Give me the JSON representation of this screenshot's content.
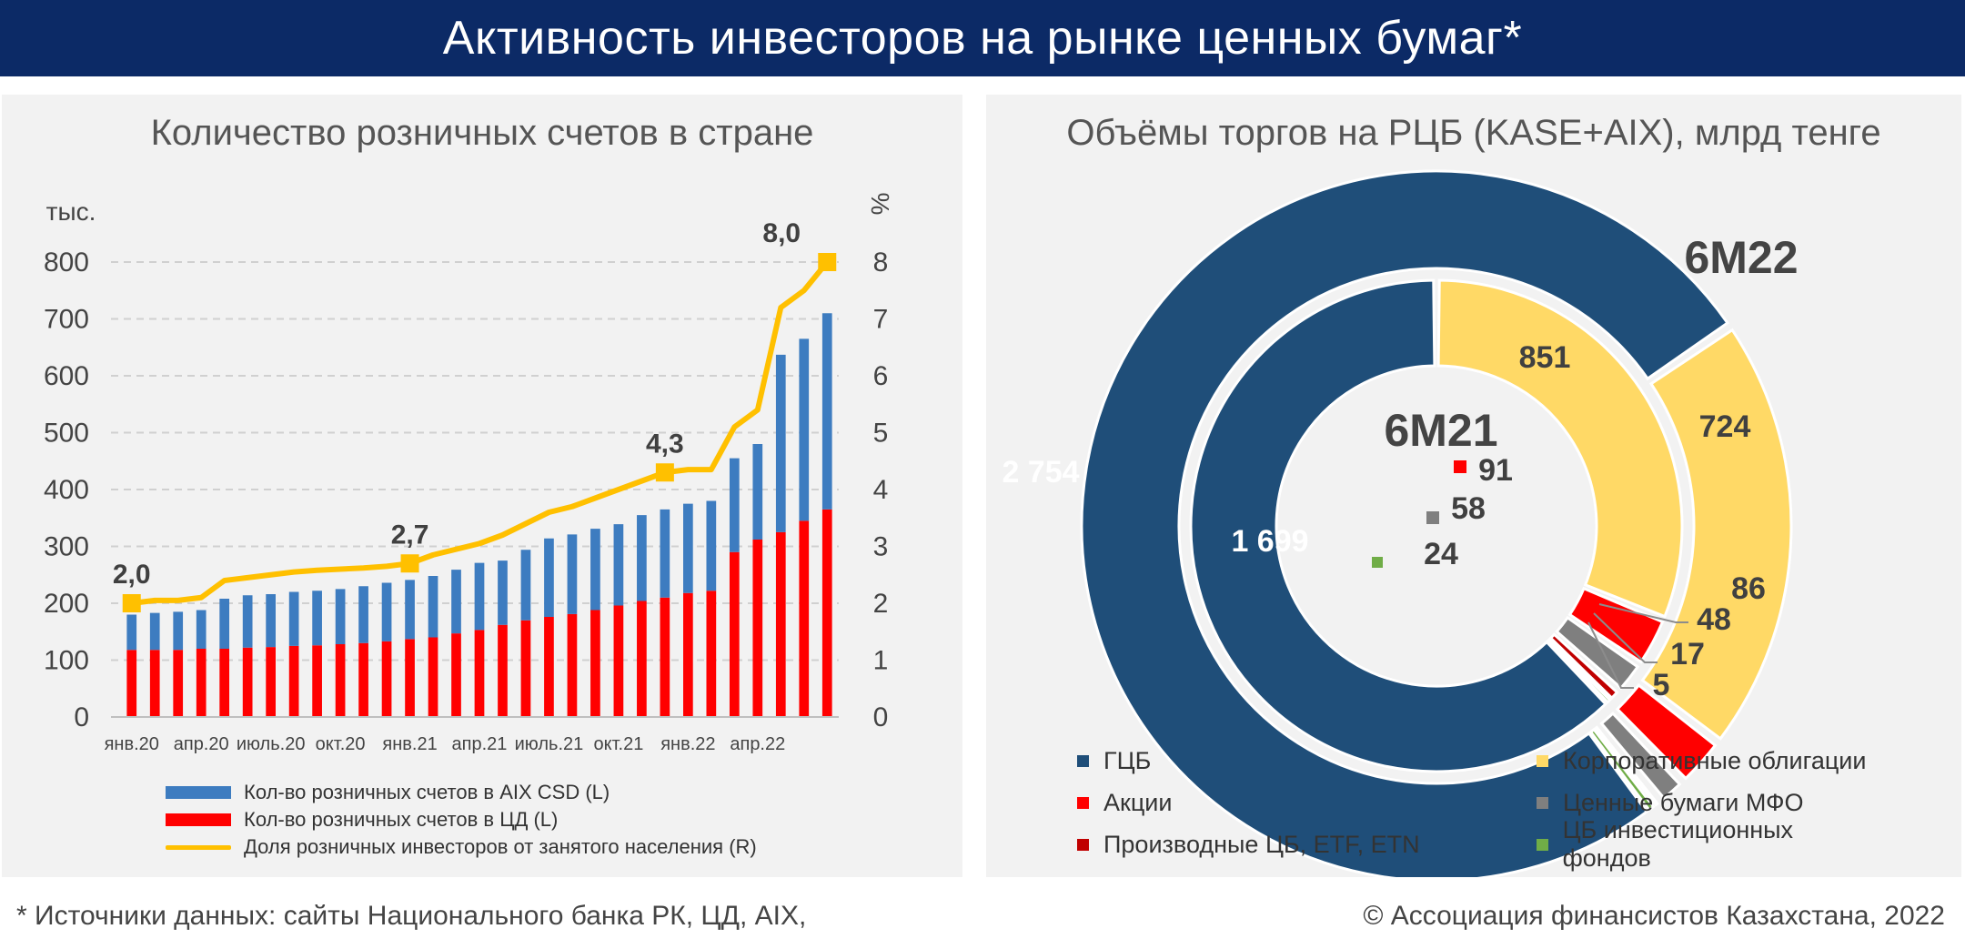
{
  "header": {
    "title": "Активность инвесторов на рынке ценных бумаг*"
  },
  "colors": {
    "navy": "#0c2a66",
    "aix_blue": "#3d7cc0",
    "cd_red": "#ff0000",
    "share_yellow": "#ffc000",
    "gcb_navy": "#1f4e79",
    "corp_yellow": "#ffd966",
    "stocks_red": "#ff0000",
    "mfo_gray": "#7f7f7f",
    "deriv_darkred": "#c00000",
    "funds_green": "#70ad47",
    "other_orange": "#c55a11"
  },
  "left_panel": {
    "title": "Количество розничных счетов в стране",
    "y_left_unit": "тыс.",
    "y_right_unit": "%",
    "legend": [
      {
        "label": "Кол-во розничных счетов в AIX CSD (L)",
        "color": "#3d7cc0",
        "kind": "bar"
      },
      {
        "label": "Кол-во розничных счетов в ЦД (L)",
        "color": "#ff0000",
        "kind": "bar"
      },
      {
        "label": "Доля розничных инвесторов от занятого населения (R)",
        "color": "#ffc000",
        "kind": "line"
      }
    ]
  },
  "right_panel": {
    "title": "Объёмы торгов на РЦБ (KASE+AIX), млрд тенге",
    "outer_label": "6М22",
    "inner_label": "6М21",
    "legend": [
      {
        "label": "ГЦБ",
        "color": "#1f4e79"
      },
      {
        "label": "Корпоративные облигации",
        "color": "#ffd966"
      },
      {
        "label": "Акции",
        "color": "#ff0000"
      },
      {
        "label": "Ценные бумаги МФО",
        "color": "#7f7f7f"
      },
      {
        "label": "Производные ЦБ, ETF, ETN",
        "color": "#c00000"
      },
      {
        "label": "ЦБ инвестиционных фондов",
        "color": "#70ad47"
      }
    ]
  },
  "chart_data": [
    {
      "type": "bar",
      "title": "Количество розничных счетов в стране",
      "ylabel": "тыс.",
      "y2label": "%",
      "stacked": true,
      "ylim": [
        0,
        800
      ],
      "y2lim": [
        0,
        8
      ],
      "y_ticks": [
        0,
        100,
        200,
        300,
        400,
        500,
        600,
        700,
        800
      ],
      "y2_ticks": [
        0,
        1,
        2,
        3,
        4,
        5,
        6,
        7,
        8
      ],
      "x_tick_labels": [
        {
          "index": 0,
          "label": "янв.20"
        },
        {
          "index": 3,
          "label": "апр.20"
        },
        {
          "index": 6,
          "label": "июль.20"
        },
        {
          "index": 9,
          "label": "окт.20"
        },
        {
          "index": 12,
          "label": "янв.21"
        },
        {
          "index": 15,
          "label": "апр.21"
        },
        {
          "index": 18,
          "label": "июль.21"
        },
        {
          "index": 21,
          "label": "окт.21"
        },
        {
          "index": 24,
          "label": "янв.22"
        },
        {
          "index": 27,
          "label": "апр.22"
        }
      ],
      "series": [
        {
          "name": "Кол-во розничных счетов в ЦД (L)",
          "axis": "left",
          "values": [
            118,
            118,
            118,
            120,
            120,
            122,
            123,
            125,
            126,
            128,
            130,
            133,
            137,
            140,
            147,
            153,
            162,
            170,
            176,
            181,
            188,
            196,
            204,
            210,
            218,
            222,
            290,
            312,
            325,
            345,
            365
          ]
        },
        {
          "name": "Кол-во розничных счетов в AIX CSD (L)",
          "axis": "left",
          "values": [
            62,
            65,
            67,
            68,
            88,
            92,
            93,
            95,
            96,
            97,
            100,
            103,
            104,
            108,
            112,
            118,
            113,
            124,
            138,
            140,
            143,
            143,
            151,
            155,
            157,
            158,
            165,
            168,
            312,
            320,
            345
          ]
        },
        {
          "name": "Доля розничных инвесторов от занятого населения (R)",
          "axis": "right",
          "type": "line",
          "values": [
            2.0,
            2.05,
            2.05,
            2.1,
            2.4,
            2.45,
            2.5,
            2.55,
            2.58,
            2.6,
            2.62,
            2.65,
            2.7,
            2.85,
            2.95,
            3.05,
            3.2,
            3.4,
            3.6,
            3.7,
            3.85,
            4.0,
            4.15,
            4.3,
            4.35,
            4.35,
            5.1,
            5.4,
            7.2,
            7.5,
            8.0
          ]
        }
      ],
      "data_labels": [
        {
          "index": 0,
          "value": "2,0"
        },
        {
          "index": 12,
          "value": "2,7"
        },
        {
          "index": 23,
          "value": "4,3"
        },
        {
          "index": 30,
          "value": "8,0"
        }
      ]
    },
    {
      "type": "pie",
      "subtype": "doughnut",
      "title": "Объёмы торгов на РЦБ (KASE+AIX), млрд тенге",
      "rings": [
        {
          "name": "6М22",
          "position": "outer",
          "slices": [
            {
              "category": "ГЦБ",
              "value": 2754,
              "label": "2 754"
            },
            {
              "category": "Корпоративные облигации",
              "value": 724,
              "label": "724"
            },
            {
              "category": "Акции",
              "value": 86,
              "label": "86"
            },
            {
              "category": "Ценные бумаги МФО",
              "value": 48,
              "label": "48"
            },
            {
              "category": "Производные ЦБ, ETF, ETN",
              "value": 17,
              "label": "17"
            },
            {
              "category": "ЦБ инвестиционных фондов",
              "value": 5,
              "label": "5"
            }
          ]
        },
        {
          "name": "6М21",
          "position": "inner",
          "slices": [
            {
              "category": "ГЦБ",
              "value": 1699,
              "label": "1 699"
            },
            {
              "category": "Корпоративные облигации",
              "value": 851,
              "label": "851"
            },
            {
              "category": "Акции",
              "value": 91,
              "label": "91"
            },
            {
              "category": "Ценные бумаги МФО",
              "value": 58,
              "label": "58"
            },
            {
              "category": "Производные ЦБ, ETF, ETN",
              "value": 24,
              "label": "24"
            },
            {
              "category": "ЦБ инвестиционных фондов",
              "value": 5,
              "label": ""
            }
          ]
        }
      ]
    }
  ],
  "footer": {
    "sources": "* Источники данных: сайты Национального банка РК, ЦД, AIX,",
    "copyright": "© Ассоциация финансистов Казахстана, 2022"
  }
}
